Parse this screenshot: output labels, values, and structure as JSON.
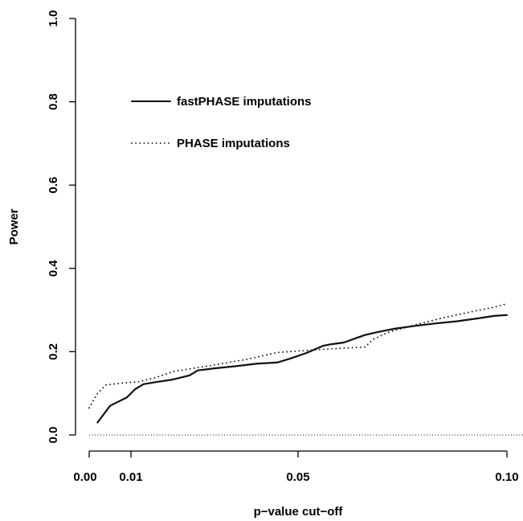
{
  "chart_data": {
    "type": "line",
    "xlabel": "p−value cut−off",
    "ylabel": "Power",
    "xlim": [
      0.0,
      0.1
    ],
    "ylim": [
      0.0,
      1.0
    ],
    "x_ticks": [
      {
        "value": 0.0,
        "label": "0.00"
      },
      {
        "value": 0.01,
        "label": "0.01"
      },
      {
        "value": 0.05,
        "label": "0.05"
      },
      {
        "value": 0.1,
        "label": "0.10"
      }
    ],
    "y_ticks": [
      {
        "value": 0.0,
        "label": "0.0"
      },
      {
        "value": 0.2,
        "label": "0.2"
      },
      {
        "value": 0.4,
        "label": "0.4"
      },
      {
        "value": 0.6,
        "label": "0.6"
      },
      {
        "value": 0.8,
        "label": "0.8"
      },
      {
        "value": 1.0,
        "label": "1.0"
      }
    ],
    "reference_line": {
      "y": 0.0,
      "style": "dotted"
    },
    "legend_position": "upper-left",
    "grid": false,
    "series": [
      {
        "name": "fastPHASE imputations",
        "style": "solid",
        "color": "#111111",
        "x": [
          0.002,
          0.005,
          0.009,
          0.011,
          0.013,
          0.016,
          0.02,
          0.024,
          0.026,
          0.03,
          0.035,
          0.04,
          0.045,
          0.048,
          0.052,
          0.056,
          0.058,
          0.061,
          0.064,
          0.066,
          0.069,
          0.073,
          0.078,
          0.083,
          0.088,
          0.093,
          0.097,
          0.1
        ],
        "y": [
          0.03,
          0.07,
          0.09,
          0.11,
          0.122,
          0.127,
          0.133,
          0.143,
          0.155,
          0.16,
          0.165,
          0.171,
          0.174,
          0.183,
          0.197,
          0.214,
          0.218,
          0.222,
          0.233,
          0.24,
          0.247,
          0.255,
          0.262,
          0.268,
          0.273,
          0.28,
          0.286,
          0.288
        ]
      },
      {
        "name": "PHASE imputations",
        "style": "dotted",
        "color": "#111111",
        "x": [
          0.0,
          0.002,
          0.004,
          0.008,
          0.012,
          0.016,
          0.02,
          0.028,
          0.038,
          0.045,
          0.055,
          0.062,
          0.066,
          0.068,
          0.072,
          0.078,
          0.085,
          0.092,
          0.097,
          0.1
        ],
        "y": [
          0.065,
          0.1,
          0.12,
          0.125,
          0.128,
          0.138,
          0.152,
          0.165,
          0.182,
          0.198,
          0.205,
          0.209,
          0.211,
          0.23,
          0.248,
          0.264,
          0.282,
          0.297,
          0.307,
          0.315
        ]
      }
    ]
  }
}
